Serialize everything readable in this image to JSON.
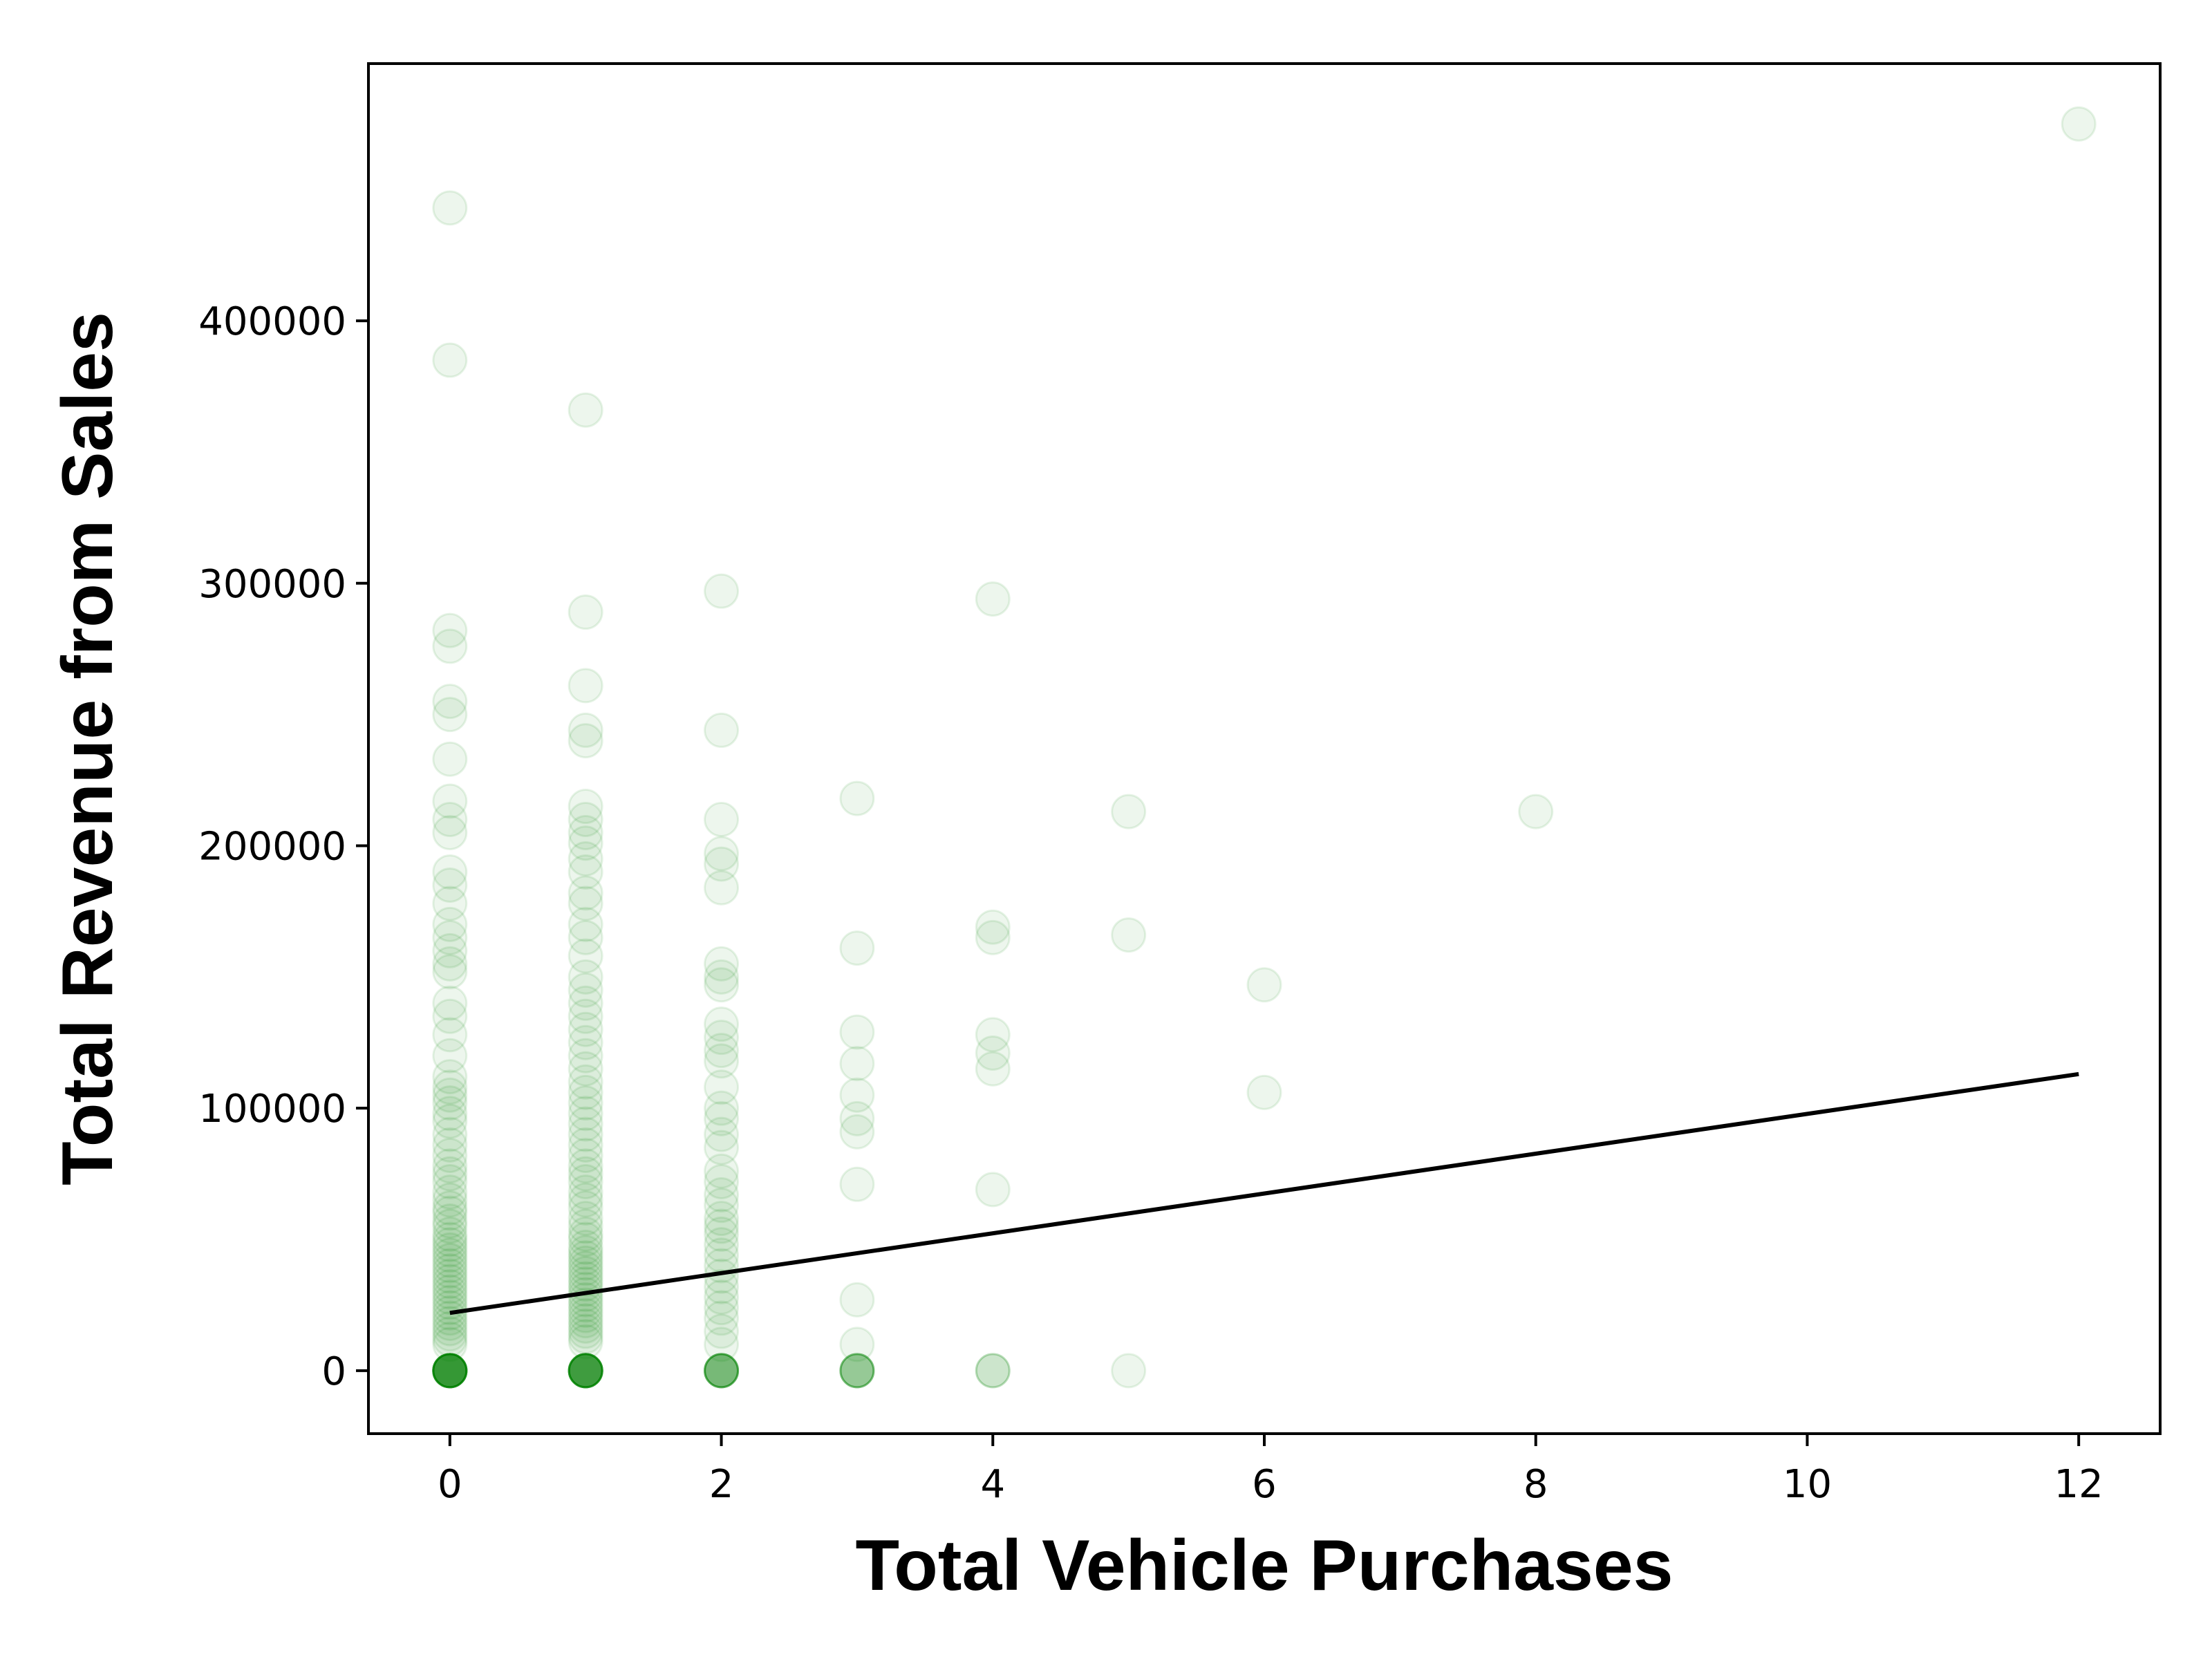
{
  "chart_data": {
    "type": "scatter",
    "title": "",
    "xlabel": "Total Vehicle Purchases",
    "ylabel": "Total Revenue from Sales",
    "xlim": [
      -0.6,
      12.6
    ],
    "ylim": [
      -24000,
      498000
    ],
    "xticks": [
      0,
      2,
      4,
      6,
      8,
      10,
      12
    ],
    "yticks": [
      0,
      100000,
      200000,
      300000,
      400000
    ],
    "xtick_labels": [
      "0",
      "2",
      "4",
      "6",
      "8",
      "10",
      "12"
    ],
    "ytick_labels": [
      "0",
      "100000",
      "200000",
      "300000",
      "400000"
    ],
    "grid": false,
    "legend": "none",
    "colors": {
      "points": "#008000",
      "fit_line": "#000000",
      "axes": "#000000"
    },
    "point_alpha": 0.07,
    "series": [
      {
        "values": [
          [
            0,
            443000
          ],
          [
            0,
            385000
          ],
          [
            0,
            282000
          ],
          [
            0,
            276000
          ],
          [
            0,
            255000
          ],
          [
            0,
            250000
          ],
          [
            0,
            233000
          ],
          [
            0,
            217000
          ],
          [
            0,
            210000
          ],
          [
            0,
            205000
          ],
          [
            0,
            190000
          ],
          [
            0,
            185000
          ],
          [
            0,
            178000
          ],
          [
            0,
            170000
          ],
          [
            0,
            165000
          ],
          [
            0,
            160000
          ],
          [
            0,
            155000
          ],
          [
            0,
            152000
          ],
          [
            0,
            140000
          ],
          [
            0,
            135000
          ],
          [
            0,
            128000
          ],
          [
            0,
            120000
          ],
          [
            0,
            112000
          ],
          [
            0,
            108000
          ],
          [
            0,
            105000
          ],
          [
            0,
            102000
          ],
          [
            0,
            98000
          ],
          [
            0,
            95000
          ],
          [
            0,
            90000
          ],
          [
            0,
            86000
          ],
          [
            0,
            82000
          ],
          [
            0,
            78000
          ],
          [
            0,
            75000
          ],
          [
            0,
            72000
          ],
          [
            0,
            68000
          ],
          [
            0,
            65000
          ],
          [
            0,
            62000
          ],
          [
            0,
            60000
          ],
          [
            0,
            57000
          ],
          [
            0,
            55000
          ],
          [
            0,
            52000
          ],
          [
            0,
            50000
          ],
          [
            0,
            48000
          ],
          [
            0,
            46000
          ],
          [
            0,
            44000
          ],
          [
            0,
            42000
          ],
          [
            0,
            40000
          ],
          [
            0,
            38000
          ],
          [
            0,
            36000
          ],
          [
            0,
            34000
          ],
          [
            0,
            32000
          ],
          [
            0,
            30000
          ],
          [
            0,
            28000
          ],
          [
            0,
            26000
          ],
          [
            0,
            24000
          ],
          [
            0,
            22000
          ],
          [
            0,
            20000
          ],
          [
            0,
            18000
          ],
          [
            0,
            16000
          ],
          [
            0,
            14000
          ],
          [
            0,
            12000
          ],
          [
            0,
            10000
          ],
          [
            0,
            0
          ],
          [
            0,
            0
          ],
          [
            0,
            0
          ],
          [
            0,
            0
          ],
          [
            0,
            0
          ],
          [
            0,
            0
          ],
          [
            0,
            0
          ],
          [
            0,
            0
          ],
          [
            0,
            0
          ],
          [
            0,
            0
          ],
          [
            0,
            0
          ],
          [
            0,
            0
          ],
          [
            0,
            0
          ],
          [
            0,
            0
          ],
          [
            0,
            0
          ],
          [
            0,
            0
          ],
          [
            0,
            0
          ],
          [
            0,
            0
          ],
          [
            0,
            0
          ],
          [
            0,
            0
          ],
          [
            1,
            366000
          ],
          [
            1,
            289000
          ],
          [
            1,
            261000
          ],
          [
            1,
            244000
          ],
          [
            1,
            240000
          ],
          [
            1,
            215000
          ],
          [
            1,
            210000
          ],
          [
            1,
            205000
          ],
          [
            1,
            201000
          ],
          [
            1,
            195000
          ],
          [
            1,
            190000
          ],
          [
            1,
            182000
          ],
          [
            1,
            178000
          ],
          [
            1,
            170000
          ],
          [
            1,
            165000
          ],
          [
            1,
            158000
          ],
          [
            1,
            150000
          ],
          [
            1,
            145000
          ],
          [
            1,
            140000
          ],
          [
            1,
            135000
          ],
          [
            1,
            130000
          ],
          [
            1,
            125000
          ],
          [
            1,
            120000
          ],
          [
            1,
            115000
          ],
          [
            1,
            110000
          ],
          [
            1,
            106000
          ],
          [
            1,
            102000
          ],
          [
            1,
            98000
          ],
          [
            1,
            94000
          ],
          [
            1,
            90000
          ],
          [
            1,
            86000
          ],
          [
            1,
            82000
          ],
          [
            1,
            78000
          ],
          [
            1,
            75000
          ],
          [
            1,
            72000
          ],
          [
            1,
            68000
          ],
          [
            1,
            65000
          ],
          [
            1,
            62000
          ],
          [
            1,
            58000
          ],
          [
            1,
            55000
          ],
          [
            1,
            52000
          ],
          [
            1,
            50000
          ],
          [
            1,
            47000
          ],
          [
            1,
            45000
          ],
          [
            1,
            43000
          ],
          [
            1,
            41000
          ],
          [
            1,
            39000
          ],
          [
            1,
            37000
          ],
          [
            1,
            35000
          ],
          [
            1,
            33000
          ],
          [
            1,
            31000
          ],
          [
            1,
            29000
          ],
          [
            1,
            27000
          ],
          [
            1,
            25000
          ],
          [
            1,
            23000
          ],
          [
            1,
            21000
          ],
          [
            1,
            19000
          ],
          [
            1,
            17000
          ],
          [
            1,
            15000
          ],
          [
            1,
            13000
          ],
          [
            1,
            11000
          ],
          [
            1,
            0
          ],
          [
            1,
            0
          ],
          [
            1,
            0
          ],
          [
            1,
            0
          ],
          [
            1,
            0
          ],
          [
            1,
            0
          ],
          [
            1,
            0
          ],
          [
            1,
            0
          ],
          [
            1,
            0
          ],
          [
            1,
            0
          ],
          [
            1,
            0
          ],
          [
            1,
            0
          ],
          [
            1,
            0
          ],
          [
            1,
            0
          ],
          [
            1,
            0
          ],
          [
            1,
            0
          ],
          [
            1,
            0
          ],
          [
            1,
            0
          ],
          [
            2,
            297000
          ],
          [
            2,
            244000
          ],
          [
            2,
            210000
          ],
          [
            2,
            197000
          ],
          [
            2,
            193000
          ],
          [
            2,
            184000
          ],
          [
            2,
            155000
          ],
          [
            2,
            150000
          ],
          [
            2,
            147000
          ],
          [
            2,
            132000
          ],
          [
            2,
            127000
          ],
          [
            2,
            122000
          ],
          [
            2,
            118000
          ],
          [
            2,
            108000
          ],
          [
            2,
            100000
          ],
          [
            2,
            96000
          ],
          [
            2,
            90000
          ],
          [
            2,
            85000
          ],
          [
            2,
            76000
          ],
          [
            2,
            72000
          ],
          [
            2,
            67000
          ],
          [
            2,
            63000
          ],
          [
            2,
            58000
          ],
          [
            2,
            55000
          ],
          [
            2,
            52000
          ],
          [
            2,
            48000
          ],
          [
            2,
            44000
          ],
          [
            2,
            40000
          ],
          [
            2,
            36000
          ],
          [
            2,
            32000
          ],
          [
            2,
            28000
          ],
          [
            2,
            24000
          ],
          [
            2,
            20000
          ],
          [
            2,
            15000
          ],
          [
            2,
            10000
          ],
          [
            2,
            0
          ],
          [
            2,
            0
          ],
          [
            2,
            0
          ],
          [
            2,
            0
          ],
          [
            2,
            0
          ],
          [
            2,
            0
          ],
          [
            2,
            0
          ],
          [
            2,
            0
          ],
          [
            2,
            0
          ],
          [
            2,
            0
          ],
          [
            3,
            218000
          ],
          [
            3,
            161000
          ],
          [
            3,
            129000
          ],
          [
            3,
            117000
          ],
          [
            3,
            105000
          ],
          [
            3,
            96000
          ],
          [
            3,
            91000
          ],
          [
            3,
            71000
          ],
          [
            3,
            27000
          ],
          [
            3,
            10000
          ],
          [
            3,
            0
          ],
          [
            3,
            0
          ],
          [
            3,
            0
          ],
          [
            3,
            0
          ],
          [
            3,
            0
          ],
          [
            3,
            0
          ],
          [
            3,
            0
          ],
          [
            4,
            294000
          ],
          [
            4,
            169000
          ],
          [
            4,
            165000
          ],
          [
            4,
            128000
          ],
          [
            4,
            121000
          ],
          [
            4,
            115000
          ],
          [
            4,
            69000
          ],
          [
            4,
            0
          ],
          [
            4,
            0
          ],
          [
            4,
            0
          ],
          [
            5,
            213000
          ],
          [
            5,
            166000
          ],
          [
            5,
            0
          ],
          [
            6,
            147000
          ],
          [
            6,
            106000
          ],
          [
            8,
            213000
          ],
          [
            12,
            475000
          ]
        ]
      }
    ],
    "fit_line": {
      "x": [
        0,
        12
      ],
      "y": [
        22000,
        113000
      ]
    }
  }
}
